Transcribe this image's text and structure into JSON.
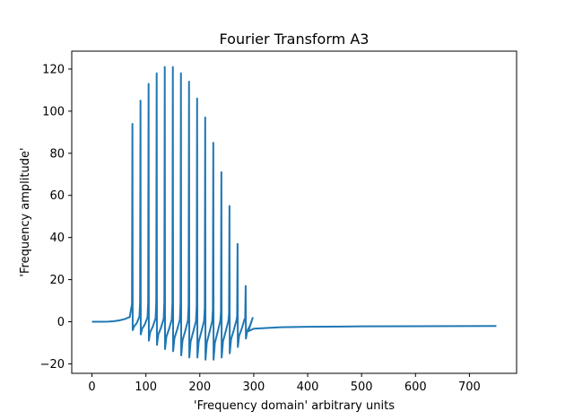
{
  "chart_data": {
    "type": "line",
    "title": "Fourier Transform A3",
    "xlabel": "'Frequency domain' arbitrary units",
    "ylabel": "'Frequency amplitude'",
    "xlim": [
      -37.5,
      787.5
    ],
    "ylim": [
      -24.5,
      128.5
    ],
    "xticks": [
      0,
      100,
      200,
      300,
      400,
      500,
      600,
      700
    ],
    "yticks": [
      -20,
      0,
      20,
      40,
      60,
      80,
      100,
      120
    ],
    "grid": false,
    "legend": "none",
    "series": [
      {
        "color": "#1f77b4",
        "baseline_start": {
          "x": 0,
          "y": 0
        },
        "baseline_rise_to": {
          "x": 72,
          "y": 2.5
        },
        "tail": [
          {
            "x": 290,
            "y": -4.5
          },
          {
            "x": 300,
            "y": -3.3
          },
          {
            "x": 350,
            "y": -2.6
          },
          {
            "x": 400,
            "y": -2.4
          },
          {
            "x": 500,
            "y": -2.2
          },
          {
            "x": 600,
            "y": -2.1
          },
          {
            "x": 750,
            "y": -2.0
          }
        ],
        "peaks": [
          {
            "x": 75,
            "peak": 94,
            "trough": -4
          },
          {
            "x": 90,
            "peak": 105,
            "trough": -6
          },
          {
            "x": 105,
            "peak": 113,
            "trough": -9
          },
          {
            "x": 120,
            "peak": 118,
            "trough": -11
          },
          {
            "x": 135,
            "peak": 121,
            "trough": -13
          },
          {
            "x": 150,
            "peak": 121,
            "trough": -14
          },
          {
            "x": 165,
            "peak": 118,
            "trough": -16
          },
          {
            "x": 180,
            "peak": 114,
            "trough": -17
          },
          {
            "x": 195,
            "peak": 106,
            "trough": -17
          },
          {
            "x": 210,
            "peak": 97,
            "trough": -18
          },
          {
            "x": 225,
            "peak": 85,
            "trough": -18
          },
          {
            "x": 240,
            "peak": 71,
            "trough": -17
          },
          {
            "x": 255,
            "peak": 55,
            "trough": -15
          },
          {
            "x": 270,
            "peak": 37,
            "trough": -12
          },
          {
            "x": 285,
            "peak": 17,
            "trough": -8
          }
        ]
      }
    ]
  }
}
